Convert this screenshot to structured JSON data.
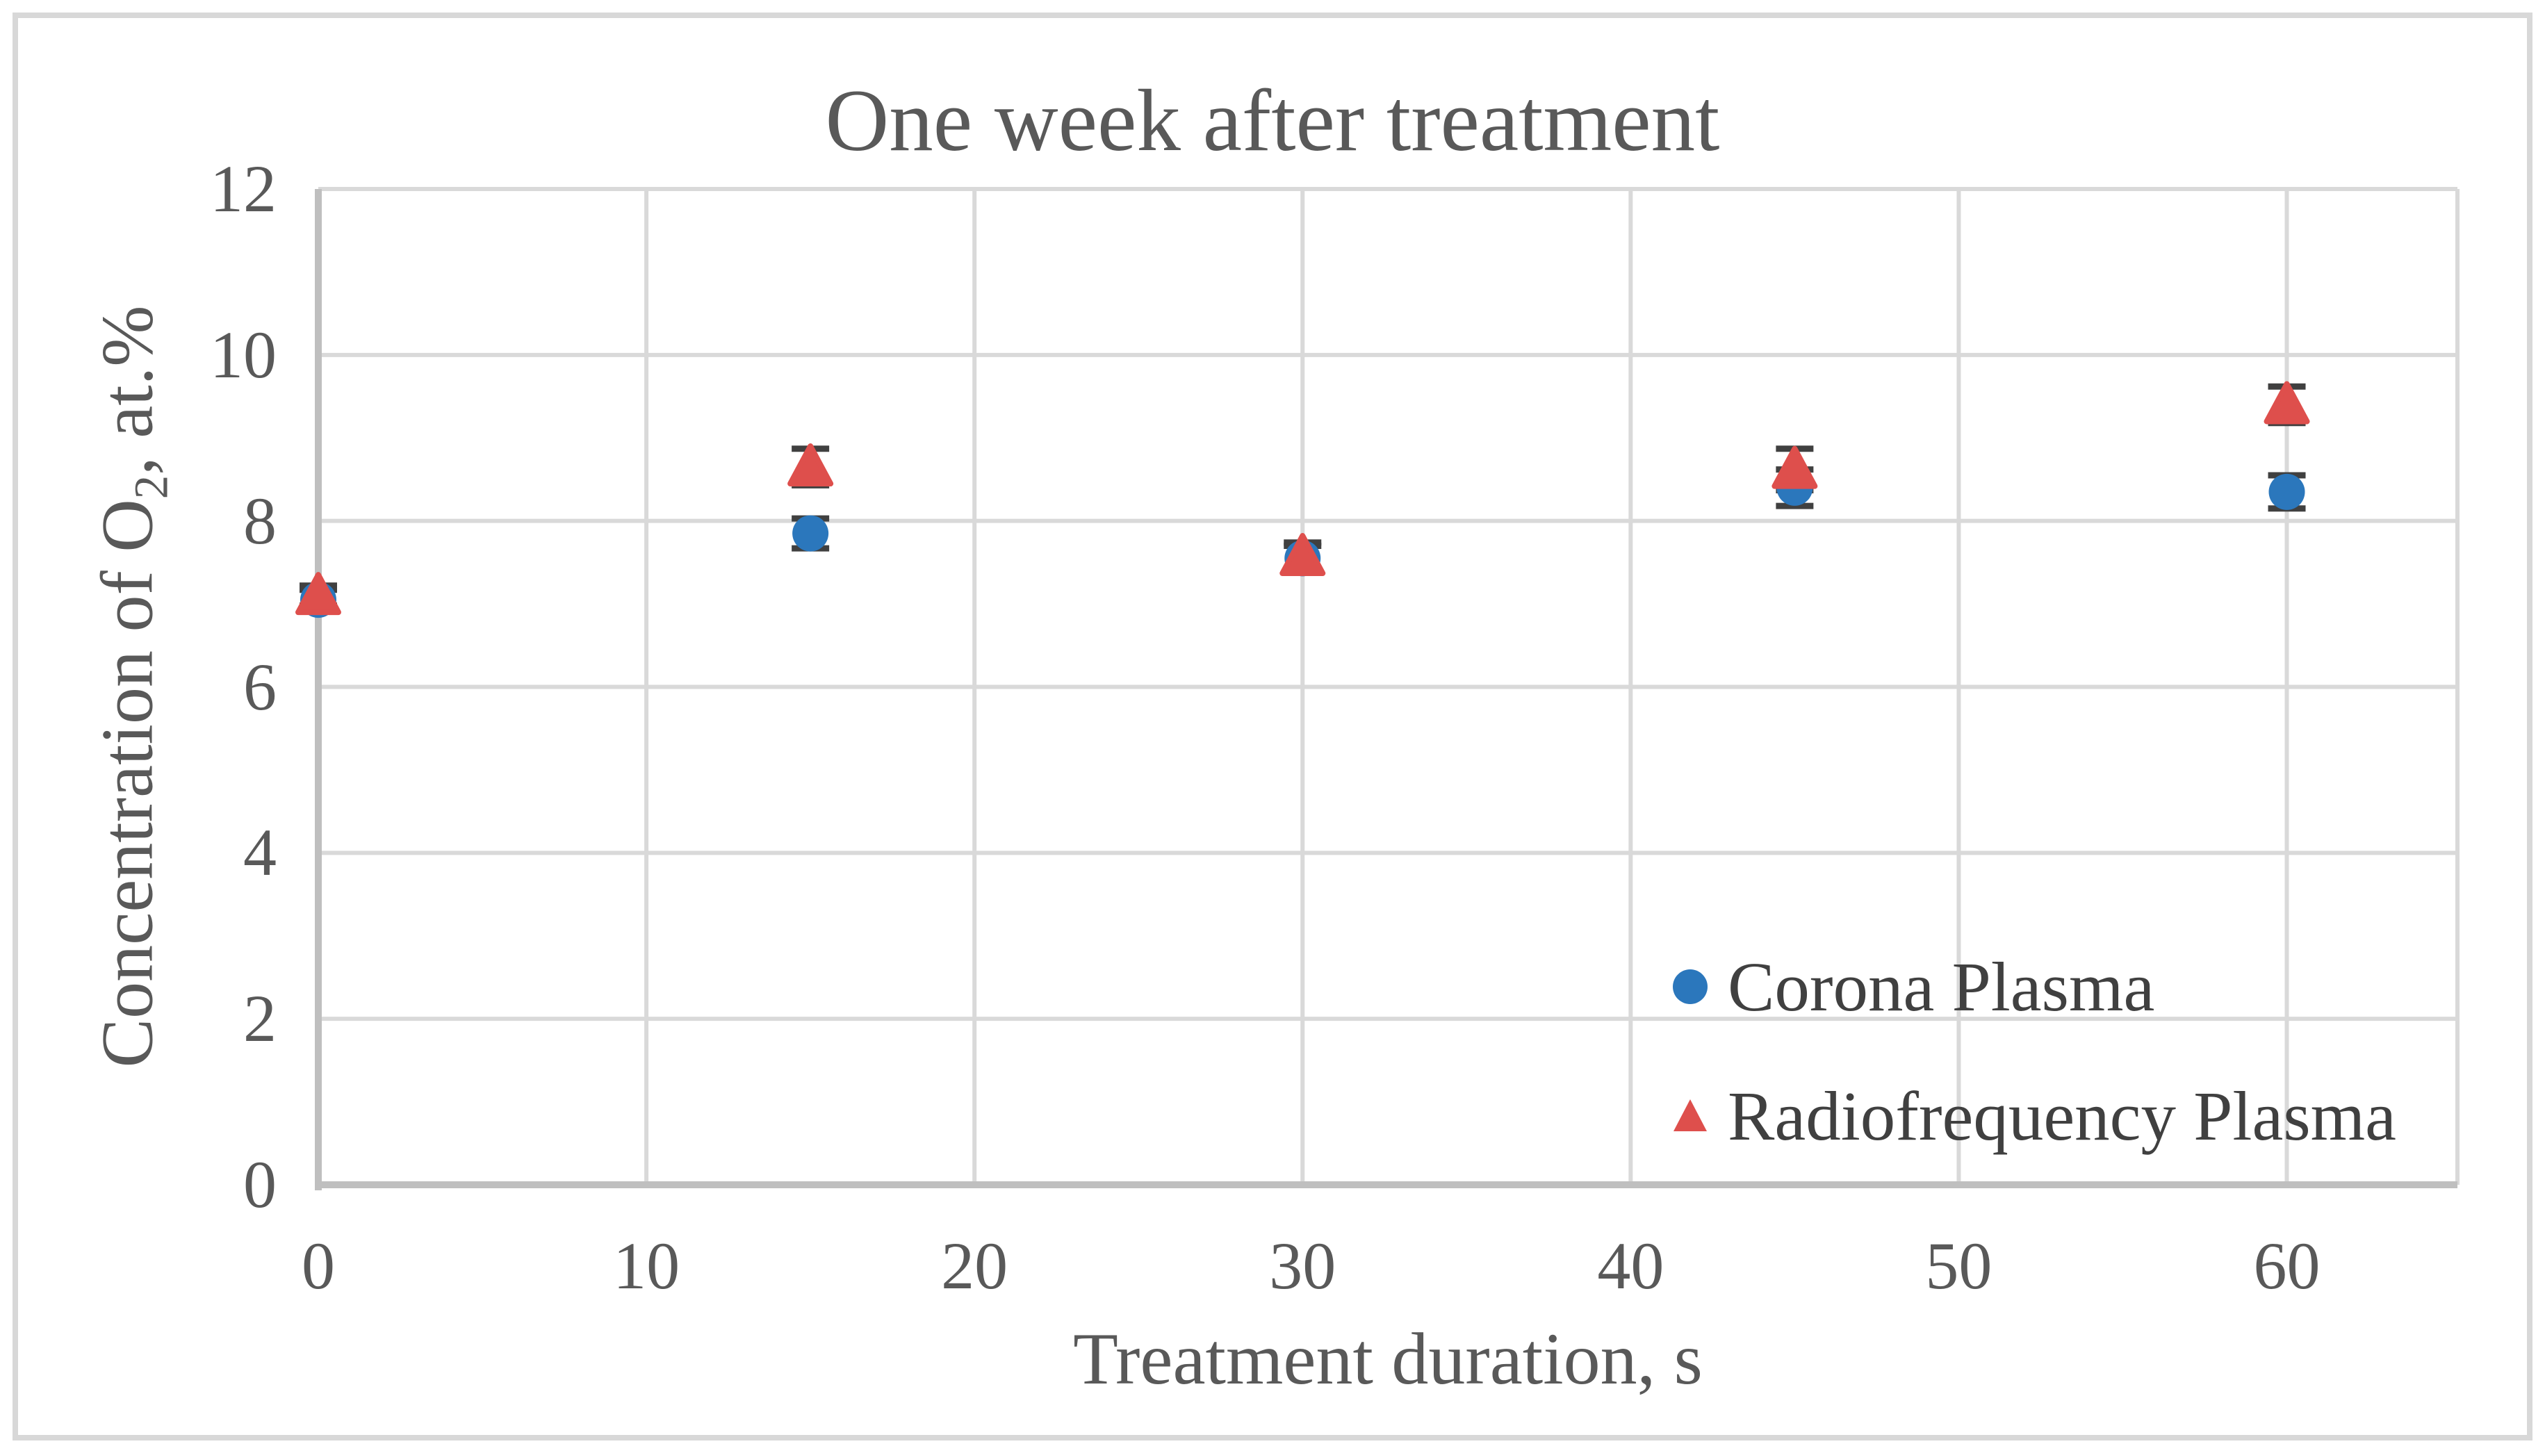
{
  "chart_data": {
    "type": "scatter",
    "title": "One week after treatment",
    "xlabel": "Treatment duration, s",
    "ylabel": "Concentration of O2, at.%",
    "ylabel_parts": {
      "pre": "Concentration of O",
      "sub": "2",
      "post": ", at.%"
    },
    "xlim": [
      0,
      65.2
    ],
    "ylim": [
      0,
      12
    ],
    "x_ticks": [
      0,
      10,
      20,
      30,
      40,
      50,
      60
    ],
    "y_ticks": [
      0,
      2,
      4,
      6,
      8,
      10,
      12
    ],
    "grid": true,
    "legend_position": "inside-right",
    "x": [
      0,
      15,
      30,
      45,
      60
    ],
    "series": [
      {
        "name": "Corona Plasma",
        "marker": "circle",
        "color": "#2B77BC",
        "values": [
          7.05,
          7.85,
          7.55,
          8.4,
          8.35
        ],
        "errors": [
          0.12,
          0.18,
          0.15,
          0.22,
          0.2
        ]
      },
      {
        "name": "Radiofrequency Plasma",
        "marker": "triangle",
        "color": "#DE4F4C",
        "values": [
          7.1,
          8.65,
          7.57,
          8.62,
          9.4
        ],
        "errors": [
          0.12,
          0.22,
          0.17,
          0.25,
          0.22
        ]
      }
    ],
    "colors": {
      "error_bar": "#404040",
      "gridline": "#D9D9D9",
      "axis_line": "#BFBFBF",
      "text": "#595959",
      "legend_text": "#404040",
      "figure_border": "#D8D8D8"
    }
  }
}
